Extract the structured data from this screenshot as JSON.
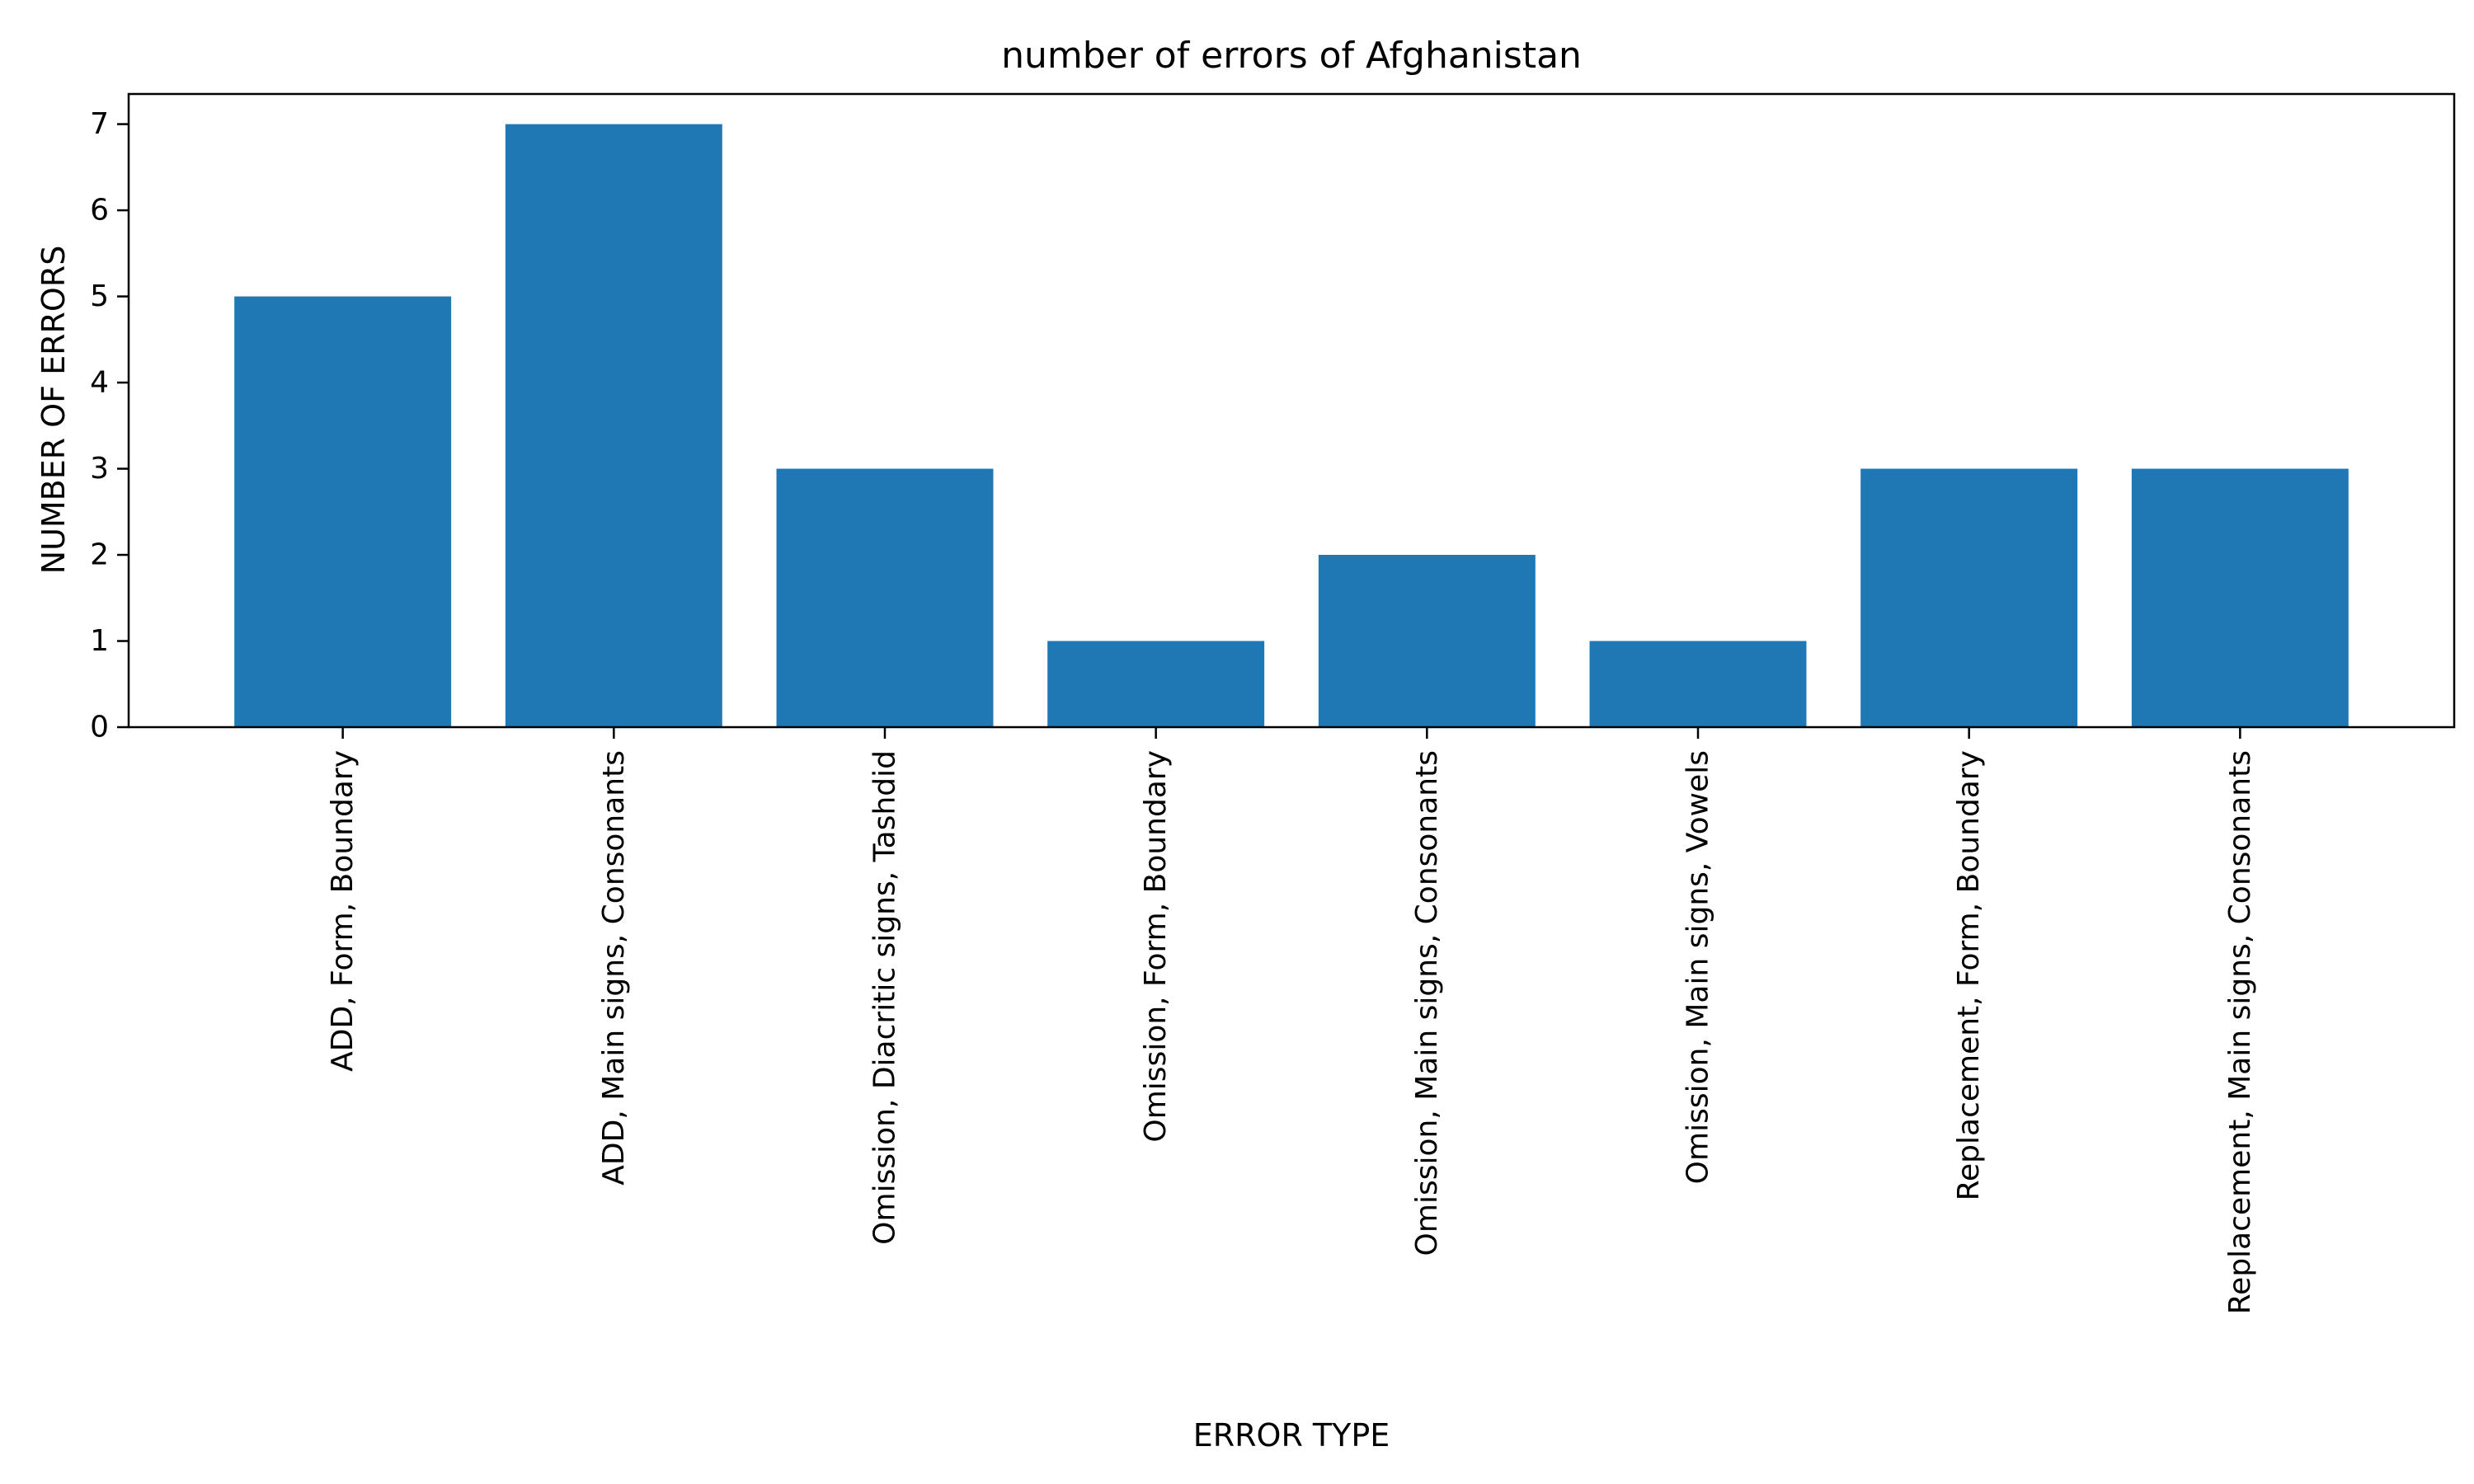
{
  "chart_data": {
    "type": "bar",
    "title": "number of errors of Afghanistan",
    "xlabel": "ERROR TYPE",
    "ylabel": "NUMBER OF ERRORS",
    "categories": [
      "ADD, Form, Boundary",
      "ADD, Main signs, Consonants",
      "Omission, Diacritic signs, Tashdid",
      "Omission, Form, Boundary",
      "Omission, Main signs, Consonants",
      "Omission, Main signs, Vowels",
      "Replacement, Form, Boundary",
      "Replacement, Main signs, Consonants"
    ],
    "values": [
      5,
      7,
      3,
      1,
      2,
      1,
      3,
      3
    ],
    "ylim": [
      0,
      7.35
    ],
    "yticks": [
      0,
      1,
      2,
      3,
      4,
      5,
      6,
      7
    ],
    "grid": false,
    "legend": "none",
    "bar_color": "#1f77b4"
  }
}
